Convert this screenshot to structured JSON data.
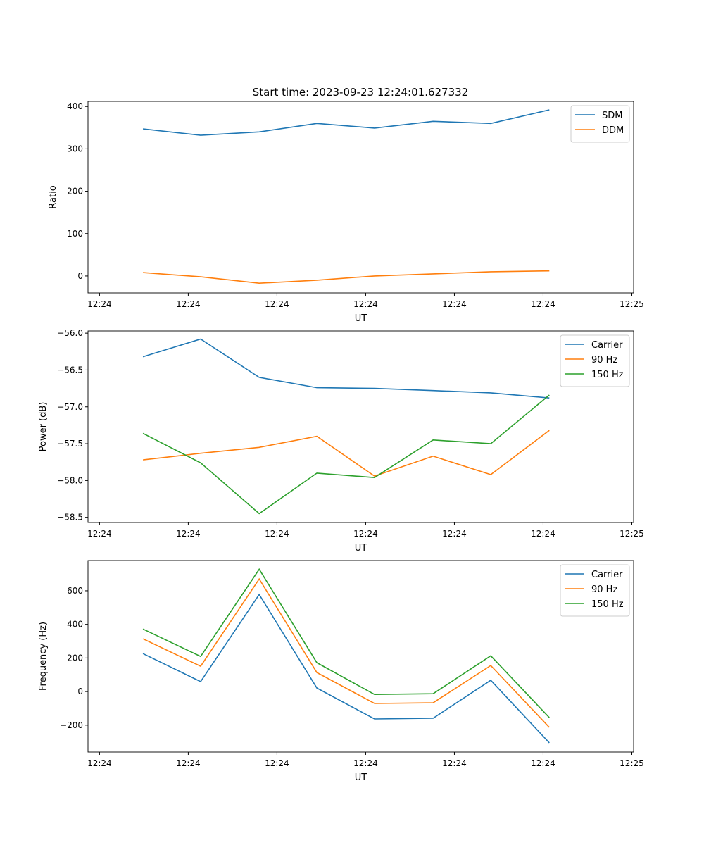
{
  "title": "Start time: 2023-09-23 12:24:01.627332",
  "chart_data": [
    {
      "type": "line",
      "xlabel": "UT",
      "ylabel": "Ratio",
      "x_unit": "seconds after 12:24:00",
      "x": [
        4.9,
        11.4,
        18.0,
        24.5,
        31.0,
        37.6,
        44.1,
        50.7
      ],
      "xlim": [
        -1.3,
        60.2
      ],
      "xticks": [
        0,
        10,
        20,
        30,
        40,
        50,
        60
      ],
      "xtick_labels": [
        "12:24",
        "12:24",
        "12:24",
        "12:24",
        "12:24",
        "12:24",
        "12:25"
      ],
      "ylim": [
        -40,
        412
      ],
      "yticks": [
        0,
        100,
        200,
        300,
        400
      ],
      "ytick_labels": [
        "0",
        "100",
        "200",
        "300",
        "400"
      ],
      "legend": "upper-right",
      "series": [
        {
          "name": "SDM",
          "color": "#1f77b4",
          "values": [
            347,
            332,
            340,
            360,
            349,
            365,
            360,
            392
          ]
        },
        {
          "name": "DDM",
          "color": "#ff7f0e",
          "values": [
            8,
            -2,
            -17,
            -10,
            0,
            5,
            10,
            12
          ]
        }
      ]
    },
    {
      "type": "line",
      "xlabel": "UT",
      "ylabel": "Power (dB)",
      "x_unit": "seconds after 12:24:00",
      "x": [
        4.9,
        11.4,
        18.0,
        24.5,
        31.0,
        37.6,
        44.1,
        50.7
      ],
      "xlim": [
        -1.3,
        60.2
      ],
      "xticks": [
        0,
        10,
        20,
        30,
        40,
        50,
        60
      ],
      "xtick_labels": [
        "12:24",
        "12:24",
        "12:24",
        "12:24",
        "12:24",
        "12:24",
        "12:25"
      ],
      "ylim": [
        -58.57,
        -55.97
      ],
      "yticks": [
        -56.0,
        -56.5,
        -57.0,
        -57.5,
        -58.0,
        -58.5
      ],
      "ytick_labels": [
        "−56.0",
        "−56.5",
        "−57.0",
        "−57.5",
        "−58.0",
        "−58.5"
      ],
      "legend": "upper-right",
      "series": [
        {
          "name": "Carrier",
          "color": "#1f77b4",
          "values": [
            -56.32,
            -56.08,
            -56.6,
            -56.74,
            -56.75,
            -56.78,
            -56.81,
            -56.88
          ]
        },
        {
          "name": "90 Hz",
          "color": "#ff7f0e",
          "values": [
            -57.72,
            -57.63,
            -57.55,
            -57.4,
            -57.94,
            -57.67,
            -57.92,
            -57.32
          ]
        },
        {
          "name": "150 Hz",
          "color": "#2ca02c",
          "values": [
            -57.36,
            -57.76,
            -58.45,
            -57.9,
            -57.96,
            -57.45,
            -57.5,
            -56.84
          ]
        }
      ]
    },
    {
      "type": "line",
      "xlabel": "UT",
      "ylabel": "Frequency (Hz)",
      "x_unit": "seconds after 12:24:00",
      "x": [
        4.9,
        11.4,
        18.0,
        24.5,
        31.0,
        37.6,
        44.1,
        50.7
      ],
      "xlim": [
        -1.3,
        60.2
      ],
      "xticks": [
        0,
        10,
        20,
        30,
        40,
        50,
        60
      ],
      "xtick_labels": [
        "12:24",
        "12:24",
        "12:24",
        "12:24",
        "12:24",
        "12:24",
        "12:25"
      ],
      "ylim": [
        -360,
        780
      ],
      "yticks": [
        -200,
        0,
        200,
        400,
        600
      ],
      "ytick_labels": [
        "−200",
        "0",
        "200",
        "400",
        "600"
      ],
      "legend": "upper-right",
      "series": [
        {
          "name": "Carrier",
          "color": "#1f77b4",
          "values": [
            226,
            59,
            578,
            21,
            -163,
            -159,
            67,
            -305
          ]
        },
        {
          "name": "90 Hz",
          "color": "#ff7f0e",
          "values": [
            314,
            151,
            670,
            113,
            -71,
            -67,
            155,
            -213
          ]
        },
        {
          "name": "150 Hz",
          "color": "#2ca02c",
          "values": [
            372,
            209,
            728,
            172,
            -17,
            -13,
            213,
            -155
          ]
        }
      ]
    }
  ]
}
